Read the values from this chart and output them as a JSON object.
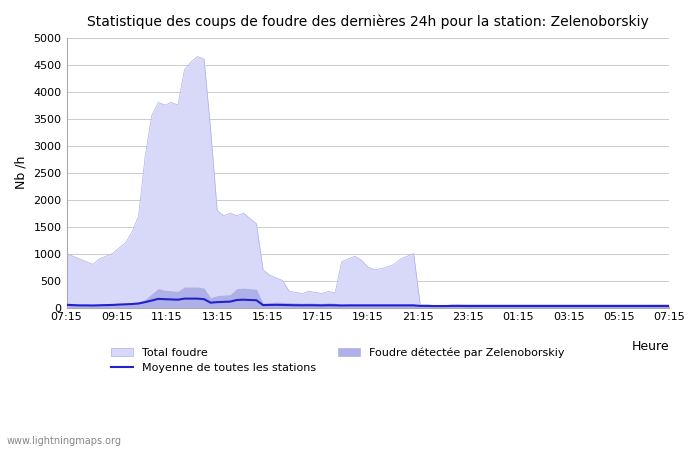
{
  "title": "Statistique des coups de foudre des dernières 24h pour la station: Zelenoborskiy",
  "xlabel": "Heure",
  "ylabel": "Nb /h",
  "watermark": "www.lightningmaps.org",
  "x_ticks": [
    "07:15",
    "09:15",
    "11:15",
    "13:15",
    "15:15",
    "17:15",
    "19:15",
    "21:15",
    "23:15",
    "01:15",
    "03:15",
    "05:15",
    "07:15"
  ],
  "ylim": [
    0,
    5000
  ],
  "y_ticks": [
    0,
    500,
    1000,
    1500,
    2000,
    2500,
    3000,
    3500,
    4000,
    4500,
    5000
  ],
  "bg_color": "#ffffff",
  "grid_color": "#cccccc",
  "fill_total_color": "#d8d8f8",
  "fill_detected_color": "#b0b0e8",
  "line_color": "#2222cc",
  "total_foudre": [
    1000,
    950,
    900,
    850,
    800,
    900,
    950,
    1000,
    1100,
    1200,
    1400,
    1700,
    2800,
    3550,
    3800,
    3750,
    3800,
    3750,
    4400,
    4550,
    4650,
    4600,
    3300,
    1800,
    1700,
    1750,
    1700,
    1750,
    1650,
    1550,
    700,
    600,
    550,
    500,
    300,
    280,
    260,
    300,
    280,
    260,
    300,
    270,
    850,
    900,
    950,
    880,
    750,
    700,
    720,
    750,
    800,
    900,
    950,
    1000,
    50,
    50,
    40,
    40,
    40,
    50,
    50,
    50,
    50,
    50,
    50,
    50,
    50,
    50,
    50,
    50,
    50,
    50,
    50,
    50,
    50,
    50,
    50,
    50,
    50,
    50,
    50,
    50,
    50,
    50,
    50,
    50,
    50,
    50,
    50,
    50,
    50,
    50,
    50
  ],
  "detected_foudre": [
    50,
    50,
    40,
    40,
    40,
    50,
    50,
    50,
    60,
    70,
    80,
    100,
    150,
    250,
    350,
    320,
    310,
    300,
    380,
    380,
    380,
    360,
    180,
    220,
    230,
    240,
    350,
    360,
    350,
    340,
    80,
    90,
    100,
    95,
    90,
    85,
    80,
    85,
    80,
    75,
    85,
    80,
    60,
    65,
    65,
    65,
    65,
    65,
    65,
    65,
    65,
    65,
    65,
    65,
    40,
    40,
    35,
    35,
    35,
    40,
    40,
    35,
    35,
    35,
    35,
    35,
    35,
    35,
    35,
    35,
    35,
    35,
    35,
    35,
    35,
    35,
    35,
    35,
    35,
    35,
    35,
    35,
    35,
    35,
    35,
    35,
    35,
    35,
    35,
    35,
    35,
    35,
    35
  ],
  "moyenne": [
    50,
    45,
    40,
    40,
    38,
    42,
    45,
    48,
    55,
    60,
    65,
    75,
    100,
    130,
    160,
    155,
    150,
    145,
    165,
    165,
    165,
    155,
    90,
    100,
    105,
    110,
    140,
    145,
    140,
    135,
    45,
    48,
    50,
    48,
    45,
    43,
    42,
    43,
    42,
    40,
    43,
    42,
    38,
    40,
    40,
    40,
    40,
    40,
    40,
    40,
    40,
    40,
    40,
    40,
    30,
    30,
    28,
    28,
    28,
    30,
    30,
    28,
    28,
    28,
    28,
    28,
    28,
    28,
    28,
    28,
    28,
    28,
    28,
    28,
    28,
    28,
    28,
    28,
    28,
    28,
    28,
    28,
    28,
    28,
    28,
    28,
    28,
    28,
    28,
    28,
    28,
    28,
    28
  ],
  "legend": {
    "total_label": "Total foudre",
    "detected_label": "Foudre détectée par Zelenoborskiy",
    "moyenne_label": "Moyenne de toutes les stations"
  }
}
